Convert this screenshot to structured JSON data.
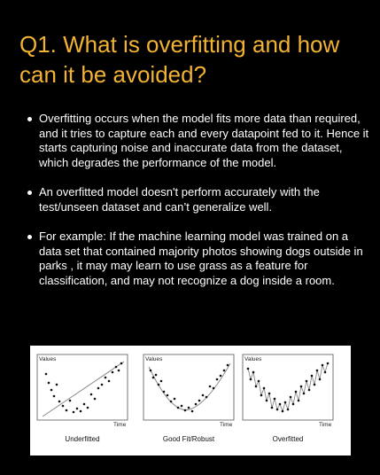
{
  "title": "Q1. What is overfitting and how can it be avoided?",
  "bullets": [
    "Overfitting occurs when the model fits more data than required, and it tries to capture each and every datapoint fed to it. Hence it starts capturing noise and inaccurate data from the dataset, which degrades the performance of the model.",
    "An overfitted model doesn't perform accurately with the test/unseen dataset and can’t generalize well.",
    "For example: If the machine learning model was trained on a data set that contained majority photos showing dogs outside in parks , it may may learn to use grass as a feature for classification, and may not recognize a dog inside a room."
  ],
  "figure": {
    "panels": [
      {
        "caption": "Underfitted",
        "ylabel": "Values",
        "xlabel": "Time"
      },
      {
        "caption": "Good Fit/Robust",
        "ylabel": "Values",
        "xlabel": "Time"
      },
      {
        "caption": "Overfitted",
        "ylabel": "Values",
        "xlabel": "Time"
      }
    ]
  },
  "colors": {
    "background": "#000000",
    "title": "#f2b233",
    "text": "#ffffff"
  }
}
